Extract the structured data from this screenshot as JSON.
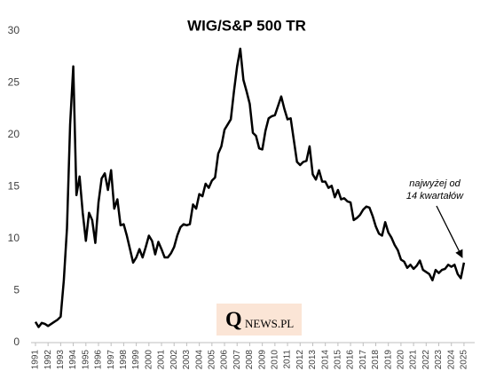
{
  "chart_data": {
    "type": "line",
    "title": "WIG/S&P 500 TR",
    "annotation": [
      "najwyżej od",
      "14 kwartałów"
    ],
    "logo": [
      "Q",
      "NEWS.PL"
    ],
    "x": [
      1991,
      1991.25,
      1991.5,
      1991.75,
      1992,
      1992.25,
      1992.5,
      1992.75,
      1993,
      1993.25,
      1993.5,
      1993.75,
      1994,
      1994.25,
      1994.5,
      1994.75,
      1995,
      1995.25,
      1995.5,
      1995.75,
      1996,
      1996.25,
      1996.5,
      1996.75,
      1997,
      1997.25,
      1997.5,
      1997.75,
      1998,
      1998.25,
      1998.5,
      1998.75,
      1999,
      1999.25,
      1999.5,
      1999.75,
      2000,
      2000.25,
      2000.5,
      2000.75,
      2001,
      2001.25,
      2001.5,
      2001.75,
      2002,
      2002.25,
      2002.5,
      2002.75,
      2003,
      2003.25,
      2003.5,
      2003.75,
      2004,
      2004.25,
      2004.5,
      2004.75,
      2005,
      2005.25,
      2005.5,
      2005.75,
      2006,
      2006.25,
      2006.5,
      2006.75,
      2007,
      2007.25,
      2007.5,
      2007.75,
      2008,
      2008.25,
      2008.5,
      2008.75,
      2009,
      2009.25,
      2009.5,
      2009.75,
      2010,
      2010.25,
      2010.5,
      2010.75,
      2011,
      2011.25,
      2011.5,
      2011.75,
      2012,
      2012.25,
      2012.5,
      2012.75,
      2013,
      2013.25,
      2013.5,
      2013.75,
      2014,
      2014.25,
      2014.5,
      2014.75,
      2015,
      2015.25,
      2015.5,
      2015.75,
      2016,
      2016.25,
      2016.5,
      2016.75,
      2017,
      2017.25,
      2017.5,
      2017.75,
      2018,
      2018.25,
      2018.5,
      2018.75,
      2019,
      2019.25,
      2019.5,
      2019.75,
      2020,
      2020.25,
      2020.5,
      2020.75,
      2021,
      2021.25,
      2021.5,
      2021.75,
      2022,
      2022.25,
      2022.5,
      2022.75,
      2023,
      2023.25,
      2023.5,
      2023.75,
      2024,
      2024.25,
      2024.5,
      2024.75,
      2025
    ],
    "values": [
      2.0,
      1.5,
      1.9,
      1.8,
      1.6,
      1.8,
      2.0,
      2.2,
      2.5,
      6,
      11,
      21,
      26.6,
      14.2,
      16,
      12.5,
      9.8,
      12.5,
      11.8,
      9.6,
      13.5,
      15.8,
      16.3,
      14.7,
      16.6,
      12.9,
      13.8,
      11.3,
      11.4,
      10.3,
      9,
      7.7,
      8.2,
      9.0,
      8.2,
      9.2,
      10.3,
      9.8,
      8.5,
      9.7,
      9.0,
      8.2,
      8.2,
      8.6,
      9.2,
      10.3,
      11.1,
      11.4,
      11.3,
      11.4,
      13.3,
      12.9,
      14.3,
      14.1,
      15.3,
      14.9,
      15.6,
      15.9,
      18.2,
      18.9,
      20.5,
      21.0,
      21.5,
      24.2,
      26.6,
      28.3,
      25.3,
      24.2,
      23.0,
      20.2,
      19.9,
      18.7,
      18.6,
      20.4,
      21.6,
      21.8,
      21.9,
      22.8,
      23.7,
      22.5,
      21.5,
      21.6,
      19.5,
      17.4,
      17.1,
      17.4,
      17.5,
      18.9,
      16.2,
      15.7,
      16.6,
      15.5,
      15.5,
      14.9,
      15.1,
      14.0,
      14.7,
      13.8,
      13.9,
      13.6,
      13.5,
      11.8,
      12.0,
      12.3,
      12.8,
      13.1,
      13.0,
      12.2,
      11.2,
      10.5,
      10.3,
      11.6,
      10.6,
      10.1,
      9.4,
      8.9,
      8.0,
      7.8,
      7.2,
      7.5,
      7.1,
      7.4,
      7.9,
      7.0,
      6.8,
      6.6,
      6.0,
      7.0,
      6.7,
      7.0,
      7.1,
      7.5,
      7.3,
      7.5,
      6.6,
      6.2,
      7.7
    ],
    "color": "#000000",
    "xlim": [
      1990.65,
      2025.85
    ],
    "xticks": [
      1991,
      1992,
      1993,
      1994,
      1995,
      1996,
      1997,
      1998,
      1999,
      2000,
      2001,
      2002,
      2003,
      2004,
      2005,
      2006,
      2007,
      2008,
      2009,
      2010,
      2011,
      2012,
      2013,
      2014,
      2015,
      2016,
      2017,
      2018,
      2019,
      2020,
      2021,
      2022,
      2023,
      2024,
      2025
    ],
    "ylim": [
      0,
      30
    ],
    "yticks": [
      0,
      5,
      10,
      15,
      20,
      25,
      30
    ],
    "grid": false
  }
}
